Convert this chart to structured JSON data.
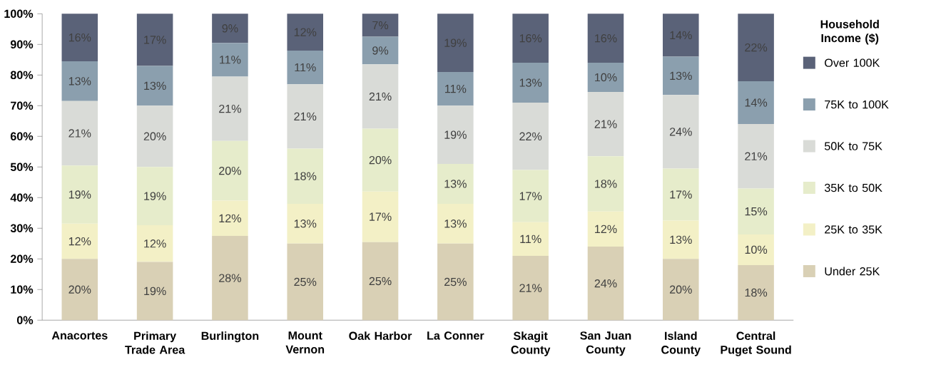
{
  "chart_data": {
    "type": "bar",
    "stacked": true,
    "legend": "right",
    "legend_title": "Household Income ($)",
    "categories": [
      "Anacortes",
      "Primary Trade Area",
      "Burlington",
      "Mount Vernon",
      "Oak Harbor",
      "La Conner",
      "Skagit County",
      "San Juan County",
      "Island County",
      "Central Puget Sound"
    ],
    "ylim": [
      0,
      100
    ],
    "yticks": [
      {
        "value": 0,
        "label": "0%"
      },
      {
        "value": 10,
        "label": "10%"
      },
      {
        "value": 20,
        "label": "20%"
      },
      {
        "value": 30,
        "label": "30%"
      },
      {
        "value": 40,
        "label": "40%"
      },
      {
        "value": 50,
        "label": "50%"
      },
      {
        "value": 60,
        "label": "60%"
      },
      {
        "value": 70,
        "label": "70%"
      },
      {
        "value": 80,
        "label": "80%"
      },
      {
        "value": 90,
        "label": "90%"
      },
      {
        "value": 100,
        "label": "100%"
      }
    ],
    "series": [
      {
        "name": "Under 25K",
        "color": "#d9d0b5",
        "values": [
          20,
          19,
          27.5,
          25,
          25.5,
          25,
          21,
          24,
          20,
          18
        ],
        "value_labels": [
          "20%",
          "19%",
          "28%",
          "25%",
          "25%",
          "25%",
          "21%",
          "24%",
          "20%",
          "18%"
        ]
      },
      {
        "name": "25K to 35K",
        "color": "#f3f0c6",
        "values": [
          11.5,
          12,
          11.5,
          13,
          16.5,
          13,
          11,
          11.5,
          12.5,
          10
        ],
        "value_labels": [
          "12%",
          "12%",
          "12%",
          "13%",
          "17%",
          "13%",
          "11%",
          "12%",
          "13%",
          "10%"
        ]
      },
      {
        "name": "35K to 50K",
        "color": "#e6eccb",
        "values": [
          19,
          19,
          19.5,
          18,
          20.5,
          13,
          17,
          18,
          17,
          15
        ],
        "value_labels": [
          "19%",
          "19%",
          "20%",
          "18%",
          "20%",
          "13%",
          "17%",
          "18%",
          "17%",
          "15%"
        ]
      },
      {
        "name": "50K to 75K",
        "color": "#d9dbd7",
        "values": [
          21,
          20,
          21,
          21,
          21,
          19,
          22,
          21,
          24,
          21
        ],
        "value_labels": [
          "21%",
          "20%",
          "21%",
          "21%",
          "21%",
          "19%",
          "22%",
          "21%",
          "24%",
          "21%"
        ]
      },
      {
        "name": "75K to 100K",
        "color": "#8b9fae",
        "values": [
          13,
          13,
          11,
          11,
          9,
          11,
          13,
          9.5,
          12.5,
          14
        ],
        "value_labels": [
          "13%",
          "13%",
          "11%",
          "11%",
          "9%",
          "11%",
          "13%",
          "10%",
          "13%",
          "14%"
        ]
      },
      {
        "name": "Over 100K",
        "color": "#5a6278",
        "values": [
          15.5,
          17,
          9.5,
          12,
          7.5,
          19,
          16,
          16,
          14,
          22
        ],
        "value_labels": [
          "16%",
          "17%",
          "9%",
          "12%",
          "7%",
          "19%",
          "16%",
          "16%",
          "14%",
          "22%"
        ]
      }
    ]
  }
}
